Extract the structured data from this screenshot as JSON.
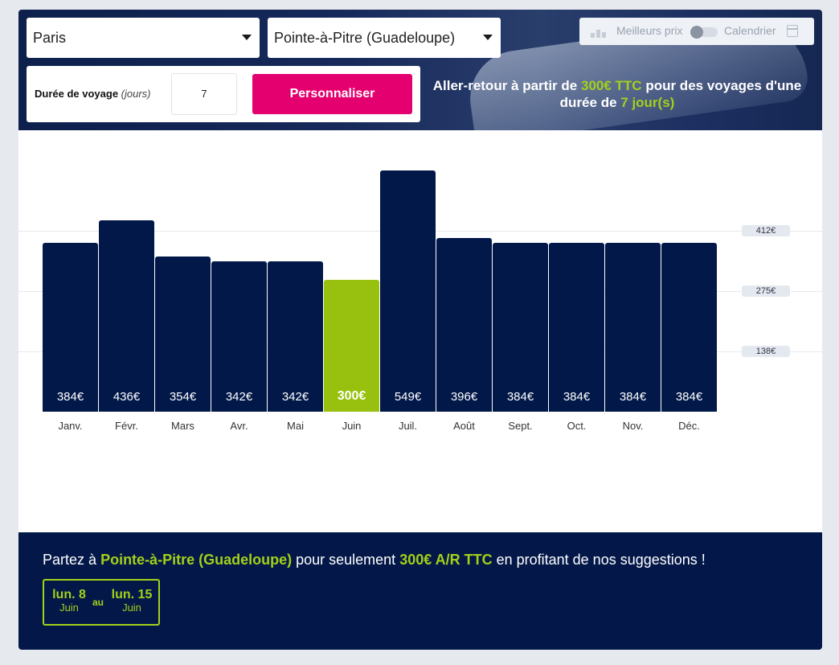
{
  "search": {
    "origin": "Paris",
    "destination": "Pointe-à-Pitre (Guadeloupe)",
    "duration_label": "Durée de voyage",
    "duration_unit": "(jours)",
    "duration_value": "7",
    "customize_button": "Personnaliser"
  },
  "view_toggle": {
    "option_best_prices": "Meilleurs prix",
    "option_calendar": "Calendrier",
    "selected": "Meilleurs prix"
  },
  "hero": {
    "text_before": "Aller-retour à partir de",
    "price": "300€ TTC",
    "text_middle": "pour des voyages d'une durée de",
    "duration": "7 jour(s)"
  },
  "colors": {
    "bar": "#021849",
    "best_bar": "#97c10e",
    "accent_green": "#a3d019",
    "button_pink": "#e4006e"
  },
  "chart_data": {
    "type": "bar",
    "categories": [
      "Janv.",
      "Févr.",
      "Mars",
      "Avr.",
      "Mai",
      "Juin",
      "Juil.",
      "Août",
      "Sept.",
      "Oct.",
      "Nov.",
      "Déc."
    ],
    "values": [
      384,
      436,
      354,
      342,
      342,
      300,
      549,
      396,
      384,
      384,
      384,
      384
    ],
    "value_labels": [
      "384€",
      "436€",
      "354€",
      "342€",
      "342€",
      "300€",
      "549€",
      "396€",
      "384€",
      "384€",
      "384€",
      "384€"
    ],
    "highlight_index": 5,
    "yticks": [
      138,
      275,
      412
    ],
    "ytick_labels": [
      "138€",
      "275€",
      "412€"
    ],
    "ylim": [
      0,
      549
    ],
    "title": "",
    "xlabel": "",
    "ylabel": ""
  },
  "suggestion": {
    "text_before": "Partez à",
    "destination": "Pointe-à-Pitre (Guadeloupe)",
    "text_middle": "pour seulement",
    "price": "300€ A/R TTC",
    "text_after": "en profitant de nos suggestions !",
    "start_day": "lun. 8",
    "start_month": "Juin",
    "separator": "au",
    "end_day": "lun. 15",
    "end_month": "Juin"
  }
}
